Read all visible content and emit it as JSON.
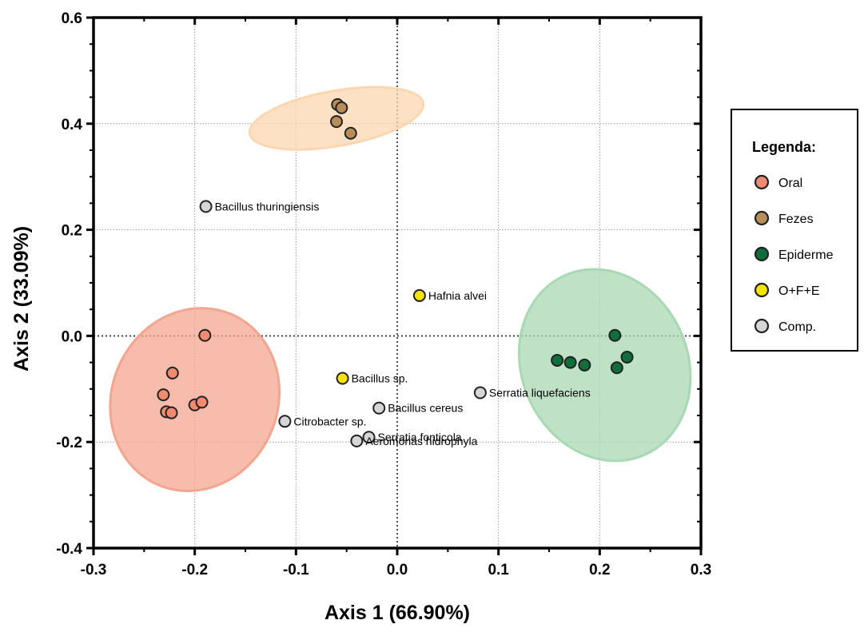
{
  "chart_data": {
    "type": "scatter",
    "xlabel": "Axis 1 (66.90%)",
    "ylabel": "Axis 2 (33.09%)",
    "xlim": [
      -0.3,
      0.3
    ],
    "ylim": [
      -0.4,
      0.6
    ],
    "x_ticks": [
      "-0.3",
      "-0.2",
      "-0.1",
      "0.0",
      "0.1",
      "0.2",
      "0.3"
    ],
    "y_ticks": [
      "-0.4",
      "-0.2",
      "0.0",
      "0.2",
      "0.4",
      "0.6"
    ],
    "grid": true,
    "zero_lines": true,
    "legend": {
      "title": "Legenda:",
      "placement": "right",
      "entries": [
        "Oral",
        "Fezes",
        "Epiderme",
        "O+F+E",
        "Comp."
      ]
    },
    "series": [
      {
        "name": "Oral",
        "color": "#f08a70",
        "points": [
          {
            "x": -0.19,
            "y": 0.001
          },
          {
            "x": -0.222,
            "y": -0.07
          },
          {
            "x": -0.231,
            "y": -0.111
          },
          {
            "x": -0.228,
            "y": -0.143
          },
          {
            "x": -0.223,
            "y": -0.145
          },
          {
            "x": -0.2,
            "y": -0.13
          },
          {
            "x": -0.193,
            "y": -0.125
          }
        ]
      },
      {
        "name": "Fezes",
        "color": "#b98d5a",
        "points": [
          {
            "x": -0.059,
            "y": 0.436
          },
          {
            "x": -0.055,
            "y": 0.43
          },
          {
            "x": -0.06,
            "y": 0.404
          },
          {
            "x": -0.046,
            "y": 0.382
          }
        ]
      },
      {
        "name": "Epiderme",
        "color": "#0f6e3a",
        "points": [
          {
            "x": 0.158,
            "y": -0.046
          },
          {
            "x": 0.171,
            "y": -0.05
          },
          {
            "x": 0.185,
            "y": -0.055
          },
          {
            "x": 0.215,
            "y": 0.001
          },
          {
            "x": 0.227,
            "y": -0.04
          },
          {
            "x": 0.217,
            "y": -0.06
          }
        ]
      },
      {
        "name": "O+F+E",
        "color": "#f5e400",
        "points": [
          {
            "x": 0.022,
            "y": 0.076,
            "label": "Hafnia alvei"
          },
          {
            "x": -0.054,
            "y": -0.08,
            "label": "Bacillus sp."
          }
        ]
      },
      {
        "name": "Comp.",
        "color": "#d6d6d6",
        "points": [
          {
            "x": -0.189,
            "y": 0.244,
            "label": "Bacillus thuringiensis"
          },
          {
            "x": -0.018,
            "y": -0.136,
            "label": "Bacillus cereus"
          },
          {
            "x": 0.082,
            "y": -0.107,
            "label": "Serratia liquefaciens"
          },
          {
            "x": -0.111,
            "y": -0.161,
            "label": "Citrobacter sp."
          },
          {
            "x": -0.028,
            "y": -0.191,
            "label": "Serratia fonticola"
          },
          {
            "x": -0.04,
            "y": -0.198,
            "label": "Aeromonas hidrophyla"
          }
        ]
      }
    ],
    "ellipses": [
      {
        "group": "Oral",
        "color": "#f4a58f",
        "cx": -0.2,
        "cy": -0.12,
        "rx": 0.082,
        "ry": 0.175,
        "rotation_deg": 23
      },
      {
        "group": "Fezes",
        "color": "#fbd7b1",
        "cx": -0.06,
        "cy": 0.41,
        "rx": 0.087,
        "ry": 0.052,
        "rotation_deg": -10
      },
      {
        "group": "Epiderme",
        "color": "#a9d8b4",
        "cx": 0.205,
        "cy": -0.055,
        "rx": 0.082,
        "ry": 0.185,
        "rotation_deg": -24
      }
    ]
  }
}
